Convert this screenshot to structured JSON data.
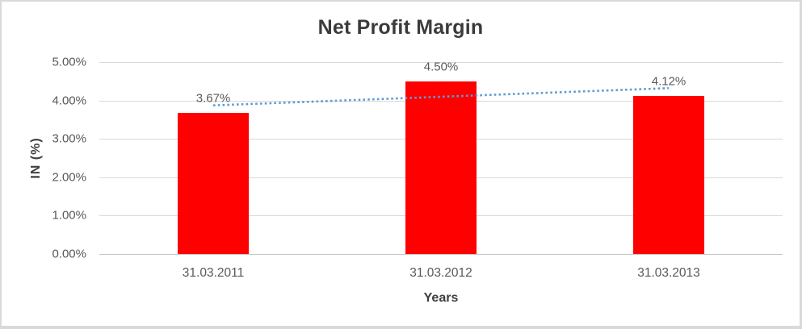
{
  "chart_data": {
    "type": "bar",
    "title": "Net Profit Margin",
    "xlabel": "Years",
    "ylabel": "IN (%)",
    "categories": [
      "31.03.2011",
      "31.03.2012",
      "31.03.2013"
    ],
    "series": [
      {
        "name": "Net Profit Margin",
        "values": [
          3.67,
          4.5,
          4.12
        ]
      }
    ],
    "value_labels": [
      "3.67%",
      "4.50%",
      "4.12%"
    ],
    "ylim": [
      0,
      5
    ],
    "ytick_labels": [
      "0.00%",
      "1.00%",
      "2.00%",
      "3.00%",
      "4.00%",
      "5.00%"
    ],
    "grid": true,
    "legend": false,
    "bar_color": "#ff0000",
    "gridline_color": "#d9d9d9",
    "trendline": {
      "type": "linear",
      "style": "dotted",
      "color": "#5b9bd5"
    }
  }
}
